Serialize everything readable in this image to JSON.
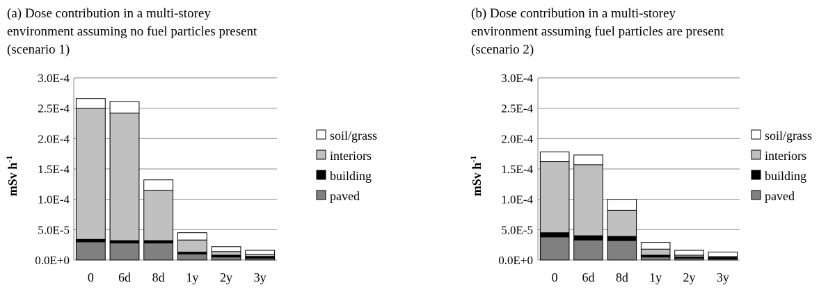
{
  "legend_colors": {
    "soil/grass": "#ffffff",
    "interiors": "#c0c0c0",
    "building": "#000000",
    "paved": "#808080"
  },
  "chart_data": [
    {
      "type": "bar",
      "stacked": true,
      "title_lines": [
        "(a) Dose contribution in a multi-storey",
        "environment assuming no fuel particles present",
        "(scenario 1)"
      ],
      "ylabel": "mSv h",
      "ylabel_sup": "-1",
      "categories": [
        "0",
        "6d",
        "8d",
        "1y",
        "2y",
        "3y"
      ],
      "ylim": [
        0,
        0.0003
      ],
      "yticks": [
        0,
        5e-05,
        0.0001,
        0.00015,
        0.0002,
        0.00025,
        0.0003
      ],
      "ytick_labels": [
        "0.0E+0",
        "5.0E-5",
        "1.0E-4",
        "1.5E-4",
        "2.0E-4",
        "2.5E-4",
        "3.0E-4"
      ],
      "grid": true,
      "legend_position": "right",
      "series": [
        {
          "name": "paved",
          "values": [
            3e-05,
            2.8e-05,
            2.8e-05,
            1e-05,
            5e-06,
            3e-06
          ]
        },
        {
          "name": "building",
          "values": [
            4e-06,
            4e-06,
            4e-06,
            3e-06,
            3e-06,
            3e-06
          ]
        },
        {
          "name": "interiors",
          "values": [
            0.000216,
            0.00021,
            8.3e-05,
            2e-05,
            6e-06,
            3e-06
          ]
        },
        {
          "name": "soil/grass",
          "values": [
            1.6e-05,
            1.9e-05,
            1.7e-05,
            1.2e-05,
            8e-06,
            7e-06
          ]
        }
      ]
    },
    {
      "type": "bar",
      "stacked": true,
      "title_lines": [
        "(b) Dose contribution in a multi-storey",
        "environment assuming fuel particles are present",
        "(scenario 2)"
      ],
      "ylabel": "mSv h",
      "ylabel_sup": "-1",
      "categories": [
        "0",
        "6d",
        "8d",
        "1y",
        "2y",
        "3y"
      ],
      "ylim": [
        0,
        0.0003
      ],
      "yticks": [
        0,
        5e-05,
        0.0001,
        0.00015,
        0.0002,
        0.00025,
        0.0003
      ],
      "ytick_labels": [
        "0.0E+0",
        "5.0E-5",
        "1.0E-4",
        "1.5E-4",
        "2.0E-4",
        "2.5E-4",
        "3.0E-4"
      ],
      "grid": true,
      "legend_position": "right",
      "series": [
        {
          "name": "paved",
          "values": [
            3.8e-05,
            3.3e-05,
            3.2e-05,
            5e-06,
            3e-06,
            2e-06
          ]
        },
        {
          "name": "building",
          "values": [
            7e-06,
            7e-06,
            7e-06,
            3e-06,
            2e-06,
            2e-06
          ]
        },
        {
          "name": "interiors",
          "values": [
            0.000117,
            0.000117,
            4.3e-05,
            1e-05,
            3e-06,
            2e-06
          ]
        },
        {
          "name": "soil/grass",
          "values": [
            1.6e-05,
            1.6e-05,
            1.8e-05,
            1.1e-05,
            8e-06,
            7e-06
          ]
        }
      ]
    }
  ]
}
